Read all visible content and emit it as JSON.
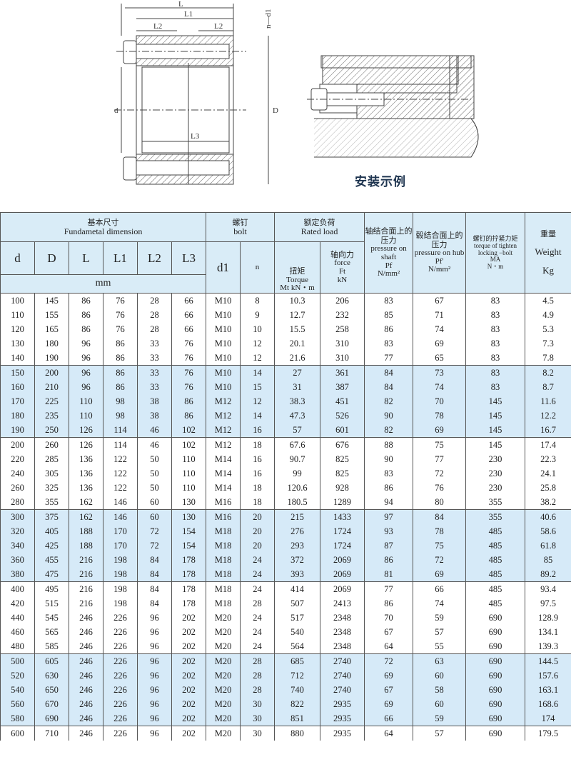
{
  "drawing": {
    "labels": {
      "L": "L",
      "L1": "L1",
      "L2": "L2",
      "L3": "L3",
      "nd1": "n—d1",
      "d": "d",
      "D": "D"
    },
    "caption": "安装示例"
  },
  "header": {
    "fundamental_zh": "基本尺寸",
    "fundamental_en": "Fundametal  dimension",
    "bolt_zh": "螺钉",
    "bolt_en": "bolt",
    "rated_zh": "额定负荷",
    "rated_en": "Rated load",
    "shaft_zh": "轴结合面上的压力",
    "shaft_en": "pressure on shaft",
    "shaft_sym": "Pf",
    "shaft_unit": "N/mm²",
    "hub_zh": "毂结合面上的压力",
    "hub_en": "pressure on hub",
    "hub_sym": "Pf'",
    "hub_unit": "N/mm²",
    "torque_bolt_zh": "螺钉的拧紧力矩",
    "torque_bolt_en": "torque of tighten locking −bolt",
    "torque_bolt_sym": "MA",
    "torque_bolt_unit": "N・m",
    "weight_zh": "重量",
    "weight_en": "Weight",
    "weight_unit": "Kg",
    "cols": [
      "d",
      "D",
      "L",
      "L1",
      "L2",
      "L3"
    ],
    "mm": "mm",
    "d1": "d1",
    "n": "n",
    "torque_zh": "扭矩",
    "torque_en": "Torque",
    "torque_sym": "Mt",
    "torque_unit": "kN・m",
    "force_zh": "轴向力",
    "force_en": "force",
    "force_sym": "Ft",
    "force_unit": "kN"
  },
  "rows": [
    [
      "100",
      "145",
      "86",
      "76",
      "28",
      "66",
      "M10",
      "8",
      "10.3",
      "206",
      "83",
      "67",
      "83",
      "4.5"
    ],
    [
      "110",
      "155",
      "86",
      "76",
      "28",
      "66",
      "M10",
      "9",
      "12.7",
      "232",
      "85",
      "71",
      "83",
      "4.9"
    ],
    [
      "120",
      "165",
      "86",
      "76",
      "28",
      "66",
      "M10",
      "10",
      "15.5",
      "258",
      "86",
      "74",
      "83",
      "5.3"
    ],
    [
      "130",
      "180",
      "96",
      "86",
      "33",
      "76",
      "M10",
      "12",
      "20.1",
      "310",
      "83",
      "69",
      "83",
      "7.3"
    ],
    [
      "140",
      "190",
      "96",
      "86",
      "33",
      "76",
      "M10",
      "12",
      "21.6",
      "310",
      "77",
      "65",
      "83",
      "7.8"
    ],
    [
      "150",
      "200",
      "96",
      "86",
      "33",
      "76",
      "M10",
      "14",
      "27",
      "361",
      "84",
      "73",
      "83",
      "8.2"
    ],
    [
      "160",
      "210",
      "96",
      "86",
      "33",
      "76",
      "M10",
      "15",
      "31",
      "387",
      "84",
      "74",
      "83",
      "8.7"
    ],
    [
      "170",
      "225",
      "110",
      "98",
      "38",
      "86",
      "M12",
      "12",
      "38.3",
      "451",
      "82",
      "70",
      "145",
      "11.6"
    ],
    [
      "180",
      "235",
      "110",
      "98",
      "38",
      "86",
      "M12",
      "14",
      "47.3",
      "526",
      "90",
      "78",
      "145",
      "12.2"
    ],
    [
      "190",
      "250",
      "126",
      "114",
      "46",
      "102",
      "M12",
      "16",
      "57",
      "601",
      "82",
      "69",
      "145",
      "16.7"
    ],
    [
      "200",
      "260",
      "126",
      "114",
      "46",
      "102",
      "M12",
      "18",
      "67.6",
      "676",
      "88",
      "75",
      "145",
      "17.4"
    ],
    [
      "220",
      "285",
      "136",
      "122",
      "50",
      "110",
      "M14",
      "16",
      "90.7",
      "825",
      "90",
      "77",
      "230",
      "22.3"
    ],
    [
      "240",
      "305",
      "136",
      "122",
      "50",
      "110",
      "M14",
      "16",
      "99",
      "825",
      "83",
      "72",
      "230",
      "24.1"
    ],
    [
      "260",
      "325",
      "136",
      "122",
      "50",
      "110",
      "M14",
      "18",
      "120.6",
      "928",
      "86",
      "76",
      "230",
      "25.8"
    ],
    [
      "280",
      "355",
      "162",
      "146",
      "60",
      "130",
      "M16",
      "18",
      "180.5",
      "1289",
      "94",
      "80",
      "355",
      "38.2"
    ],
    [
      "300",
      "375",
      "162",
      "146",
      "60",
      "130",
      "M16",
      "20",
      "215",
      "1433",
      "97",
      "84",
      "355",
      "40.6"
    ],
    [
      "320",
      "405",
      "188",
      "170",
      "72",
      "154",
      "M18",
      "20",
      "276",
      "1724",
      "93",
      "78",
      "485",
      "58.6"
    ],
    [
      "340",
      "425",
      "188",
      "170",
      "72",
      "154",
      "M18",
      "20",
      "293",
      "1724",
      "87",
      "75",
      "485",
      "61.8"
    ],
    [
      "360",
      "455",
      "216",
      "198",
      "84",
      "178",
      "M18",
      "24",
      "372",
      "2069",
      "86",
      "72",
      "485",
      "85"
    ],
    [
      "380",
      "475",
      "216",
      "198",
      "84",
      "178",
      "M18",
      "24",
      "393",
      "2069",
      "81",
      "69",
      "485",
      "89.2"
    ],
    [
      "400",
      "495",
      "216",
      "198",
      "84",
      "178",
      "M18",
      "24",
      "414",
      "2069",
      "77",
      "66",
      "485",
      "93.4"
    ],
    [
      "420",
      "515",
      "216",
      "198",
      "84",
      "178",
      "M18",
      "28",
      "507",
      "2413",
      "86",
      "74",
      "485",
      "97.5"
    ],
    [
      "440",
      "545",
      "246",
      "226",
      "96",
      "202",
      "M20",
      "24",
      "517",
      "2348",
      "70",
      "59",
      "690",
      "128.9"
    ],
    [
      "460",
      "565",
      "246",
      "226",
      "96",
      "202",
      "M20",
      "24",
      "540",
      "2348",
      "67",
      "57",
      "690",
      "134.1"
    ],
    [
      "480",
      "585",
      "246",
      "226",
      "96",
      "202",
      "M20",
      "24",
      "564",
      "2348",
      "64",
      "55",
      "690",
      "139.3"
    ],
    [
      "500",
      "605",
      "246",
      "226",
      "96",
      "202",
      "M20",
      "28",
      "685",
      "2740",
      "72",
      "63",
      "690",
      "144.5"
    ],
    [
      "520",
      "630",
      "246",
      "226",
      "96",
      "202",
      "M20",
      "28",
      "712",
      "2740",
      "69",
      "60",
      "690",
      "157.6"
    ],
    [
      "540",
      "650",
      "246",
      "226",
      "96",
      "202",
      "M20",
      "28",
      "740",
      "2740",
      "67",
      "58",
      "690",
      "163.1"
    ],
    [
      "560",
      "670",
      "246",
      "226",
      "96",
      "202",
      "M20",
      "30",
      "822",
      "2935",
      "69",
      "60",
      "690",
      "168.6"
    ],
    [
      "580",
      "690",
      "246",
      "226",
      "96",
      "202",
      "M20",
      "30",
      "851",
      "2935",
      "66",
      "59",
      "690",
      "174"
    ],
    [
      "600",
      "710",
      "246",
      "226",
      "96",
      "202",
      "M20",
      "30",
      "880",
      "2935",
      "64",
      "57",
      "690",
      "179.5"
    ]
  ],
  "colors": {
    "header_bg": "#d9ecf7",
    "band_bg": "#d6eaf8",
    "caption": "#1f3550"
  }
}
